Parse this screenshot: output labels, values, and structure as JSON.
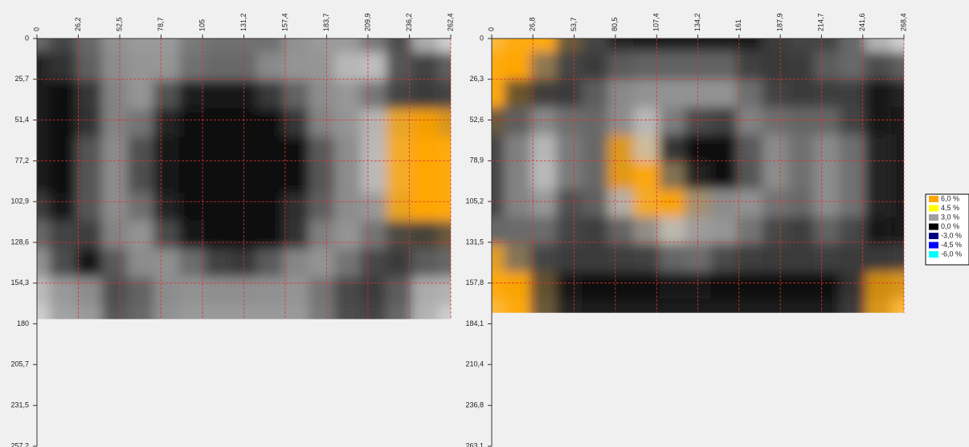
{
  "chart_data": [
    {
      "type": "heatmap",
      "xlim": [
        0,
        262.4
      ],
      "ylim": [
        0,
        257.2
      ],
      "heatmap_xlim": [
        0,
        262.4
      ],
      "heatmap_ylim": [
        0,
        177
      ],
      "xticks": [
        0,
        {
          "value": 26.2,
          "label": "26,2"
        },
        {
          "value": 52.5,
          "label": "52,5"
        },
        {
          "value": 78.7,
          "label": "78,7"
        },
        105,
        {
          "value": 131.2,
          "label": "131,2"
        },
        {
          "value": 157.4,
          "label": "157,4"
        },
        {
          "value": 183.7,
          "label": "183,7"
        },
        {
          "value": 209.9,
          "label": "209,9"
        },
        {
          "value": 236.2,
          "label": "236,2"
        },
        {
          "value": 262.4,
          "label": "262,4"
        }
      ],
      "yticks": [
        0,
        {
          "value": 25.7,
          "label": "25,7"
        },
        {
          "value": 51.4,
          "label": "51,4"
        },
        {
          "value": 77.2,
          "label": "77,2"
        },
        {
          "value": 102.9,
          "label": "102,9"
        },
        {
          "value": 128.6,
          "label": "128,6"
        },
        {
          "value": 154.3,
          "label": "154,3"
        },
        180,
        {
          "value": 205.7,
          "label": "205,7"
        },
        {
          "value": 231.5,
          "label": "231,5"
        },
        {
          "value": 257.2,
          "label": "257,2"
        }
      ],
      "grid": true,
      "grid_color": "#e03030",
      "z": [
        [
          1,
          1,
          2,
          3,
          3,
          3,
          2,
          2,
          2,
          2,
          3,
          3,
          3,
          2,
          1,
          4
        ],
        [
          0,
          1,
          2,
          3,
          3,
          3,
          2,
          2,
          2,
          3,
          3,
          3,
          4,
          4,
          1,
          1
        ],
        [
          0,
          0,
          1,
          3,
          3,
          1,
          0,
          0,
          0,
          1,
          2,
          3,
          3,
          2,
          1,
          1
        ],
        [
          0,
          0,
          1,
          3,
          2,
          0,
          0,
          0,
          0,
          0,
          1,
          3,
          3,
          4,
          6,
          6
        ],
        [
          0,
          0,
          2,
          3,
          1,
          0,
          0,
          0,
          0,
          0,
          0,
          2,
          3,
          4,
          6,
          6
        ],
        [
          0,
          0,
          2,
          3,
          1,
          0,
          0,
          0,
          0,
          0,
          0,
          2,
          3,
          4,
          6,
          6
        ],
        [
          1,
          0,
          2,
          3,
          2,
          0,
          0,
          0,
          0,
          0,
          1,
          2,
          3,
          3,
          6,
          6
        ],
        [
          2,
          1,
          1,
          3,
          3,
          1,
          0,
          0,
          0,
          0,
          1,
          3,
          3,
          2,
          1,
          1
        ],
        [
          3,
          1,
          0,
          2,
          3,
          3,
          2,
          1,
          1,
          2,
          3,
          3,
          2,
          1,
          1,
          2
        ],
        [
          4,
          3,
          3,
          1,
          2,
          3,
          3,
          3,
          3,
          3,
          3,
          2,
          1,
          1,
          2,
          4
        ]
      ]
    },
    {
      "type": "heatmap",
      "xlim": [
        0,
        268.4
      ],
      "ylim": [
        0,
        263.1
      ],
      "heatmap_xlim": [
        0,
        268.4
      ],
      "heatmap_ylim": [
        0,
        177
      ],
      "xticks": [
        0,
        {
          "value": 26.8,
          "label": "26,8"
        },
        {
          "value": 53.7,
          "label": "53,7"
        },
        {
          "value": 80.5,
          "label": "80,5"
        },
        {
          "value": 107.4,
          "label": "107,4"
        },
        {
          "value": 134.2,
          "label": "134,2"
        },
        161,
        {
          "value": 187.9,
          "label": "187,9"
        },
        {
          "value": 214.7,
          "label": "214,7"
        },
        {
          "value": 241.6,
          "label": "241,6"
        },
        {
          "value": 268.4,
          "label": "268,4"
        }
      ],
      "yticks": [
        0,
        {
          "value": 26.3,
          "label": "26,3"
        },
        {
          "value": 52.6,
          "label": "52,6"
        },
        {
          "value": 78.9,
          "label": "78,9"
        },
        {
          "value": 105.2,
          "label": "105,2"
        },
        {
          "value": 131.5,
          "label": "131,5"
        },
        {
          "value": 157.8,
          "label": "157,8"
        },
        {
          "value": 184.1,
          "label": "184,1"
        },
        {
          "value": 210.4,
          "label": "210,4"
        },
        {
          "value": 236.8,
          "label": "236,8"
        },
        {
          "value": 263.1,
          "label": "263,1"
        }
      ],
      "grid": true,
      "grid_color": "#e03030",
      "z": [
        [
          6,
          6,
          6,
          1,
          1,
          0,
          0,
          0,
          0,
          0,
          0,
          1,
          1,
          1,
          2,
          4
        ],
        [
          6,
          6,
          2,
          1,
          1,
          2,
          2,
          2,
          2,
          2,
          1,
          1,
          1,
          2,
          2,
          1
        ],
        [
          6,
          1,
          1,
          1,
          2,
          3,
          3,
          3,
          3,
          3,
          2,
          1,
          1,
          1,
          1,
          0
        ],
        [
          1,
          2,
          3,
          2,
          2,
          3,
          4,
          2,
          1,
          1,
          3,
          2,
          2,
          2,
          1,
          0
        ],
        [
          1,
          3,
          4,
          2,
          2,
          6,
          4,
          0,
          0,
          0,
          2,
          3,
          2,
          3,
          2,
          0
        ],
        [
          1,
          3,
          4,
          2,
          2,
          6,
          6,
          2,
          0,
          0,
          2,
          3,
          2,
          3,
          2,
          0
        ],
        [
          1,
          3,
          3,
          1,
          2,
          4,
          6,
          6,
          3,
          3,
          3,
          2,
          2,
          3,
          2,
          0
        ],
        [
          2,
          2,
          2,
          1,
          1,
          2,
          3,
          4,
          3,
          3,
          2,
          1,
          1,
          2,
          1,
          0
        ],
        [
          6,
          2,
          1,
          1,
          1,
          1,
          1,
          2,
          2,
          1,
          1,
          1,
          1,
          1,
          1,
          1
        ],
        [
          6,
          6,
          1,
          0,
          0,
          0,
          0,
          0,
          0,
          0,
          0,
          0,
          0,
          0,
          1,
          6
        ]
      ]
    }
  ],
  "legend": {
    "items": [
      {
        "value": 6.0,
        "label": "6,0 %",
        "color": "#ffa500"
      },
      {
        "value": 4.5,
        "label": "4,5 %",
        "color": "#ffff00"
      },
      {
        "value": 3.0,
        "label": "3,0 %",
        "color": "#a0a0a0"
      },
      {
        "value": 0.0,
        "label": "0,0 %",
        "color": "#000000"
      },
      {
        "value": -3.0,
        "label": "-3,0 %",
        "color": "#000080"
      },
      {
        "value": -4.5,
        "label": "-4,5 %",
        "color": "#0000ff"
      },
      {
        "value": -6.0,
        "label": "-6,0 %",
        "color": "#00ffff"
      }
    ]
  }
}
